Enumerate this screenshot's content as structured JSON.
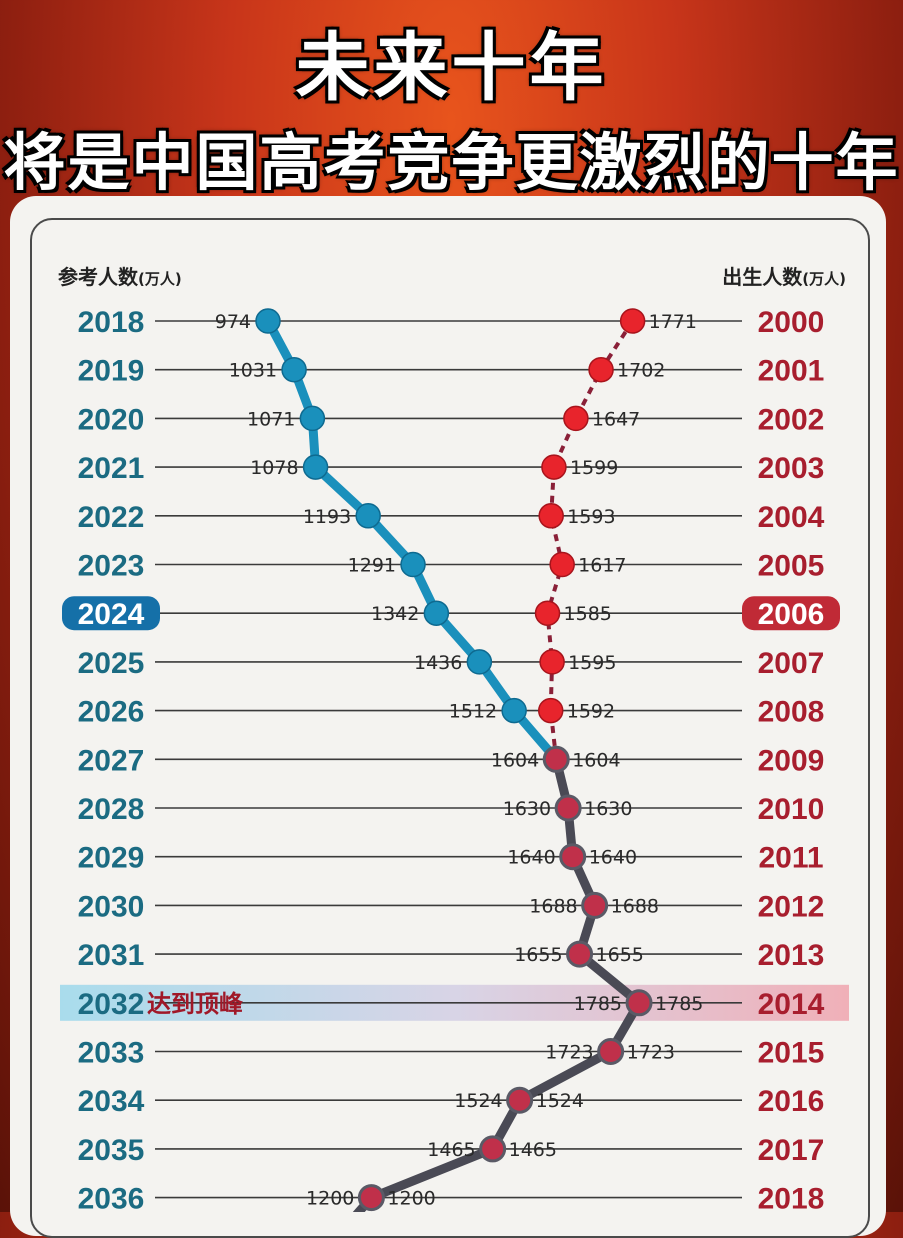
{
  "header": {
    "title": "未来十年",
    "subtitle": "将是中国高考竞争更激烈的十年"
  },
  "chart_data": {
    "type": "line",
    "left_label": "参考人数",
    "left_unit": "(万人)",
    "right_label": "出生人数",
    "right_unit": "(万人)",
    "peak_label": "达到顶峰",
    "highlight_year": "2024",
    "highlight_birth_year": "2006",
    "peak_year": "2032",
    "colors": {
      "exam_line": "#1a90bc",
      "birth_line": "#8a2038",
      "projection_line": "#4a4a55",
      "birth_point": "#e8242c",
      "projection_point": "#c0304a",
      "exam_year_text": "#1b6b82",
      "birth_year_text": "#a81e2e"
    },
    "rows": [
      {
        "year": "2018",
        "exam": "974",
        "birth": "1771",
        "birth_year": "2000"
      },
      {
        "year": "2019",
        "exam": "1031",
        "birth": "1702",
        "birth_year": "2001"
      },
      {
        "year": "2020",
        "exam": "1071",
        "birth": "1647",
        "birth_year": "2002"
      },
      {
        "year": "2021",
        "exam": "1078",
        "birth": "1599",
        "birth_year": "2003"
      },
      {
        "year": "2022",
        "exam": "1193",
        "birth": "1593",
        "birth_year": "2004"
      },
      {
        "year": "2023",
        "exam": "1291",
        "birth": "1617",
        "birth_year": "2005"
      },
      {
        "year": "2024",
        "exam": "1342",
        "birth": "1585",
        "birth_year": "2006"
      },
      {
        "year": "2025",
        "exam": "1436",
        "birth": "1595",
        "birth_year": "2007"
      },
      {
        "year": "2026",
        "exam": "1512",
        "birth": "1592",
        "birth_year": "2008"
      },
      {
        "year": "2027",
        "exam": "1604",
        "birth": "1604",
        "birth_year": "2009"
      },
      {
        "year": "2028",
        "exam": "1630",
        "birth": "1630",
        "birth_year": "2010"
      },
      {
        "year": "2029",
        "exam": "1640",
        "birth": "1640",
        "birth_year": "2011"
      },
      {
        "year": "2030",
        "exam": "1688",
        "birth": "1688",
        "birth_year": "2012"
      },
      {
        "year": "2031",
        "exam": "1655",
        "birth": "1655",
        "birth_year": "2013"
      },
      {
        "year": "2032",
        "exam": "1785",
        "birth": "1785",
        "birth_year": "2014"
      },
      {
        "year": "2033",
        "exam": "1723",
        "birth": "1723",
        "birth_year": "2015"
      },
      {
        "year": "2034",
        "exam": "1524",
        "birth": "1524",
        "birth_year": "2016"
      },
      {
        "year": "2035",
        "exam": "1465",
        "birth": "1465",
        "birth_year": "2017"
      },
      {
        "year": "2036",
        "exam": "1200",
        "birth": "1200",
        "birth_year": "2018"
      }
    ]
  }
}
